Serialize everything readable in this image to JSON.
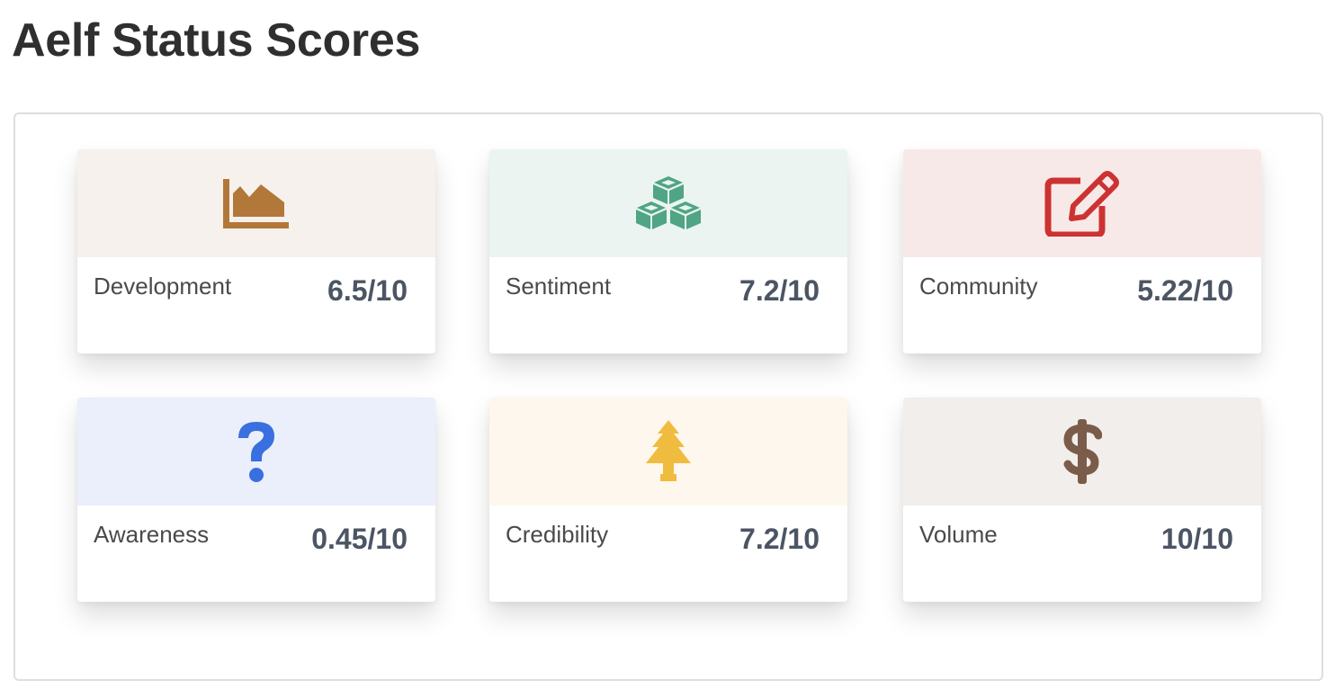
{
  "page": {
    "title": "Aelf Status Scores"
  },
  "cards": [
    {
      "label": "Development",
      "score": "6.5/10",
      "icon": "area-chart-icon",
      "bg": "#f6f1ec",
      "color": "#b2783a"
    },
    {
      "label": "Sentiment",
      "score": "7.2/10",
      "icon": "cubes-icon",
      "bg": "#ebf4f1",
      "color": "#4fa584"
    },
    {
      "label": "Community",
      "score": "5.22/10",
      "icon": "edit-icon",
      "bg": "#f8e9e9",
      "color": "#cd3232"
    },
    {
      "label": "Awareness",
      "score": "0.45/10",
      "icon": "question-icon",
      "bg": "#ebeffb",
      "color": "#3a6fe0"
    },
    {
      "label": "Credibility",
      "score": "7.2/10",
      "icon": "tree-icon",
      "bg": "#fef7ed",
      "color": "#f0bc3f"
    },
    {
      "label": "Volume",
      "score": "10/10",
      "icon": "dollar-icon",
      "bg": "#f2eeec",
      "color": "#7b5c4a"
    }
  ]
}
